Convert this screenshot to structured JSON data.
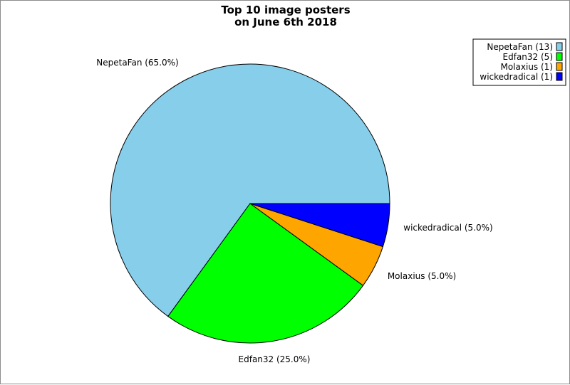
{
  "chart_data": {
    "type": "pie",
    "title_lines": [
      "Top 10 image posters",
      "on June 6th 2018"
    ],
    "slices": [
      {
        "name": "NepetaFan",
        "count": 13,
        "percent": 65.0,
        "color": "#87ceeb",
        "label": "NepetaFan (65.0%)",
        "legend": "NepetaFan (13)"
      },
      {
        "name": "Edfan32",
        "count": 5,
        "percent": 25.0,
        "color": "#00ff00",
        "label": "Edfan32 (25.0%)",
        "legend": "Edfan32 (5)"
      },
      {
        "name": "Molaxius",
        "count": 1,
        "percent": 5.0,
        "color": "#ffa500",
        "label": "Molaxius (5.0%)",
        "legend": "Molaxius (1)"
      },
      {
        "name": "wickedradical",
        "count": 1,
        "percent": 5.0,
        "color": "#0000ff",
        "label": "wickedradical (5.0%)",
        "legend": "wickedradical (1)"
      }
    ],
    "start_angle_deg": 0,
    "direction": "counterclockwise",
    "legend_position": "top-right"
  }
}
